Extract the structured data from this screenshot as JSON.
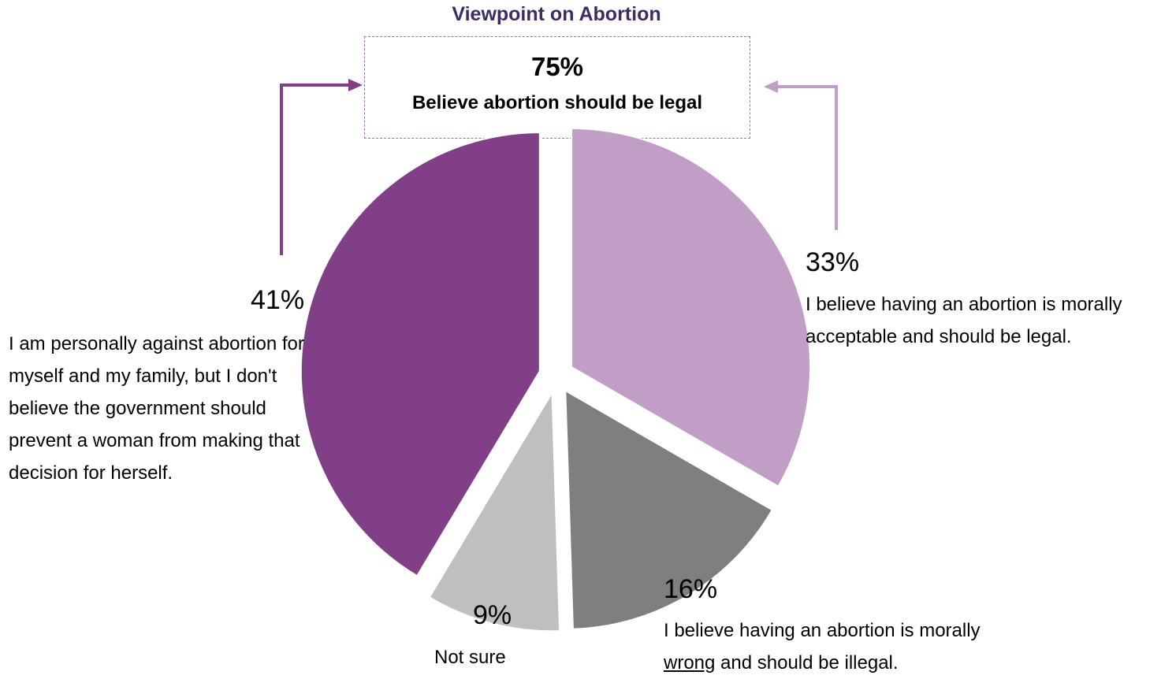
{
  "chart_data": {
    "type": "pie",
    "title": "Viewpoint on Abortion",
    "slices": [
      {
        "value": 33,
        "pct_label": "33%",
        "label": "I believe having an abortion is morally acceptable and should be legal.",
        "color": "#c19ec6"
      },
      {
        "value": 16,
        "pct_label": "16%",
        "label_pre": "I believe having an abortion is morally",
        "label_underlined": "wrong",
        "label_post": "and should be illegal.",
        "color": "#7f7f7f"
      },
      {
        "value": 9,
        "pct_label": "9%",
        "label": "Not sure",
        "color": "#bfbfbf"
      },
      {
        "value": 41,
        "pct_label": "41%",
        "label": "I am personally against abortion for myself and my family, but I don't believe the government should prevent a woman from making that decision for herself.",
        "color": "#803f87"
      }
    ],
    "callout": {
      "pct": "75%",
      "text": "Believe abortion should be legal"
    }
  },
  "colors": {
    "title": "#3f2b63",
    "arrow_left": "#803f87",
    "arrow_right": "#c19ec6",
    "box_border": "#9a6fae"
  }
}
